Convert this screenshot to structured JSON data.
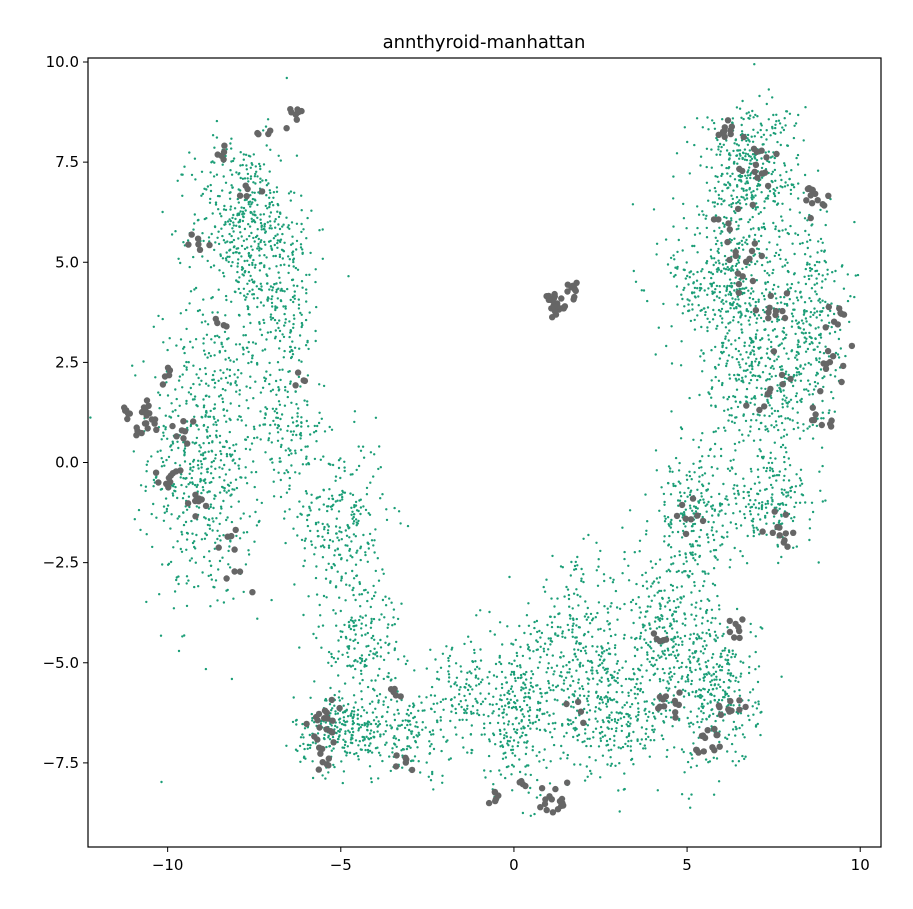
{
  "chart_data": {
    "type": "scatter",
    "title": "annthyroid-manhattan",
    "xlabel": "",
    "ylabel": "",
    "xlim": [
      -12.3,
      10.6
    ],
    "ylim": [
      -9.6,
      10.1
    ],
    "x_ticks": [
      -10,
      -5,
      0,
      5,
      10
    ],
    "x_tick_labels": [
      "−10",
      "−5",
      "0",
      "5",
      "10"
    ],
    "y_ticks": [
      10.0,
      7.5,
      5.0,
      2.5,
      0.0,
      -2.5,
      -5.0,
      -7.5
    ],
    "y_tick_labels": [
      "10.0",
      "7.5",
      "5.0",
      "2.5",
      "0.0",
      "−2.5",
      "−5.0",
      "−7.5"
    ],
    "grid": false,
    "legend": "none",
    "series": [
      {
        "color": "#1b9e77",
        "marker": "small-dot",
        "regions": [
          {
            "cx": -8.9,
            "cy": 0.2,
            "sx": 1.1,
            "sy": 2.6,
            "n": 620
          },
          {
            "cx": -7.8,
            "cy": 6.0,
            "sx": 1.0,
            "sy": 1.4,
            "n": 430
          },
          {
            "cx": -6.7,
            "cy": 4.2,
            "sx": 0.8,
            "sy": 1.4,
            "n": 220
          },
          {
            "cx": -6.5,
            "cy": 0.9,
            "sx": 0.7,
            "sy": 1.0,
            "n": 140
          },
          {
            "cx": -5.0,
            "cy": -1.5,
            "sx": 0.9,
            "sy": 1.4,
            "n": 250
          },
          {
            "cx": -4.4,
            "cy": -4.4,
            "sx": 0.8,
            "sy": 1.2,
            "n": 200
          },
          {
            "cx": -5.0,
            "cy": -6.7,
            "sx": 0.9,
            "sy": 0.6,
            "n": 260
          },
          {
            "cx": -3.1,
            "cy": -6.8,
            "sx": 0.9,
            "sy": 0.7,
            "n": 140
          },
          {
            "cx": -1.5,
            "cy": -5.7,
            "sx": 0.8,
            "sy": 0.9,
            "n": 130
          },
          {
            "cx": 0.2,
            "cy": -6.2,
            "sx": 1.0,
            "sy": 1.4,
            "n": 330
          },
          {
            "cx": 1.9,
            "cy": -4.6,
            "sx": 0.9,
            "sy": 1.4,
            "n": 260
          },
          {
            "cx": 2.9,
            "cy": -6.4,
            "sx": 1.0,
            "sy": 0.9,
            "n": 230
          },
          {
            "cx": 4.4,
            "cy": -4.4,
            "sx": 0.9,
            "sy": 1.6,
            "n": 330
          },
          {
            "cx": 5.9,
            "cy": -5.7,
            "sx": 0.8,
            "sy": 1.3,
            "n": 300
          },
          {
            "cx": 5.2,
            "cy": -1.4,
            "sx": 0.8,
            "sy": 1.1,
            "n": 240
          },
          {
            "cx": 7.4,
            "cy": -1.0,
            "sx": 0.8,
            "sy": 0.8,
            "n": 170
          },
          {
            "cx": 7.2,
            "cy": 2.1,
            "sx": 1.2,
            "sy": 1.5,
            "n": 440
          },
          {
            "cx": 6.1,
            "cy": 4.5,
            "sx": 1.1,
            "sy": 1.2,
            "n": 370
          },
          {
            "cx": 8.6,
            "cy": 3.8,
            "sx": 0.6,
            "sy": 1.6,
            "n": 230
          },
          {
            "cx": 6.8,
            "cy": 7.3,
            "sx": 1.0,
            "sy": 1.2,
            "n": 430
          }
        ]
      },
      {
        "color": "#666666",
        "marker": "dot",
        "clusters": [
          {
            "cx": 1.2,
            "cy": 3.9,
            "r": 0.25,
            "n": 24
          },
          {
            "cx": 1.8,
            "cy": 4.3,
            "r": 0.2,
            "n": 10
          },
          {
            "cx": -10.7,
            "cy": 1.1,
            "r": 0.4,
            "n": 20
          },
          {
            "cx": -11.2,
            "cy": 1.3,
            "r": 0.1,
            "n": 4
          },
          {
            "cx": -10.0,
            "cy": -0.4,
            "r": 0.3,
            "n": 10
          },
          {
            "cx": -9.5,
            "cy": 0.7,
            "r": 0.3,
            "n": 8
          },
          {
            "cx": -9.2,
            "cy": -1.0,
            "r": 0.3,
            "n": 8
          },
          {
            "cx": -10.1,
            "cy": 2.2,
            "r": 0.2,
            "n": 5
          },
          {
            "cx": -8.5,
            "cy": 7.7,
            "r": 0.2,
            "n": 5
          },
          {
            "cx": -6.4,
            "cy": 8.7,
            "r": 0.3,
            "n": 8
          },
          {
            "cx": -7.2,
            "cy": 8.2,
            "r": 0.2,
            "n": 4
          },
          {
            "cx": -9.1,
            "cy": 5.4,
            "r": 0.3,
            "n": 6
          },
          {
            "cx": -7.6,
            "cy": 6.8,
            "r": 0.3,
            "n": 5
          },
          {
            "cx": -8.5,
            "cy": 3.5,
            "r": 0.3,
            "n": 4
          },
          {
            "cx": -6.0,
            "cy": 2.0,
            "r": 0.3,
            "n": 4
          },
          {
            "cx": -8.3,
            "cy": -2.0,
            "r": 0.3,
            "n": 5
          },
          {
            "cx": -7.9,
            "cy": -2.9,
            "r": 0.3,
            "n": 4
          },
          {
            "cx": -5.6,
            "cy": -6.5,
            "r": 0.4,
            "n": 16
          },
          {
            "cx": -5.5,
            "cy": -7.3,
            "r": 0.3,
            "n": 10
          },
          {
            "cx": -3.3,
            "cy": -5.7,
            "r": 0.3,
            "n": 5
          },
          {
            "cx": -3.2,
            "cy": -7.5,
            "r": 0.3,
            "n": 6
          },
          {
            "cx": -0.6,
            "cy": -8.4,
            "r": 0.2,
            "n": 6
          },
          {
            "cx": 1.1,
            "cy": -8.4,
            "r": 0.4,
            "n": 16
          },
          {
            "cx": 0.4,
            "cy": -7.9,
            "r": 0.2,
            "n": 4
          },
          {
            "cx": 1.9,
            "cy": -6.1,
            "r": 0.3,
            "n": 4
          },
          {
            "cx": 4.5,
            "cy": -6.1,
            "r": 0.4,
            "n": 12
          },
          {
            "cx": 5.7,
            "cy": -7.0,
            "r": 0.4,
            "n": 14
          },
          {
            "cx": 6.3,
            "cy": -6.0,
            "r": 0.4,
            "n": 10
          },
          {
            "cx": 6.5,
            "cy": -4.2,
            "r": 0.3,
            "n": 8
          },
          {
            "cx": 4.2,
            "cy": -4.4,
            "r": 0.3,
            "n": 5
          },
          {
            "cx": 7.8,
            "cy": -1.8,
            "r": 0.5,
            "n": 12
          },
          {
            "cx": 8.9,
            "cy": 1.1,
            "r": 0.3,
            "n": 8
          },
          {
            "cx": 9.2,
            "cy": 2.4,
            "r": 0.4,
            "n": 10
          },
          {
            "cx": 9.4,
            "cy": 3.7,
            "r": 0.3,
            "n": 8
          },
          {
            "cx": 8.7,
            "cy": 6.6,
            "r": 0.3,
            "n": 14
          },
          {
            "cx": 6.1,
            "cy": 8.4,
            "r": 0.3,
            "n": 10
          },
          {
            "cx": 7.0,
            "cy": 7.5,
            "r": 0.6,
            "n": 14
          },
          {
            "cx": 6.6,
            "cy": 4.8,
            "r": 0.6,
            "n": 12
          },
          {
            "cx": 7.6,
            "cy": 3.8,
            "r": 0.5,
            "n": 10
          },
          {
            "cx": 7.5,
            "cy": 1.6,
            "r": 0.7,
            "n": 10
          },
          {
            "cx": 5.0,
            "cy": -1.2,
            "r": 0.5,
            "n": 8
          },
          {
            "cx": 6.4,
            "cy": 5.8,
            "r": 0.6,
            "n": 8
          }
        ]
      }
    ]
  }
}
